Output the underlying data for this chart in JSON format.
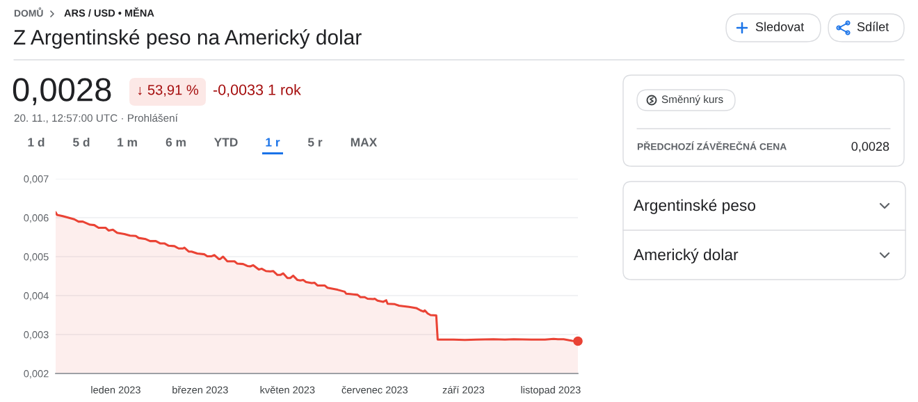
{
  "chart_data": {
    "type": "area",
    "title": "Z Argentinské peso na Americký dolar",
    "x": [
      "2022-11-20",
      "2022-11-21",
      "2022-11-25",
      "2022-12-03",
      "2022-12-06",
      "2022-12-09",
      "2022-12-14",
      "2022-12-17",
      "2022-12-20",
      "2022-12-25",
      "2022-12-27",
      "2022-12-30",
      "2023-01-02",
      "2023-01-07",
      "2023-01-11",
      "2023-01-15",
      "2023-01-17",
      "2023-01-22",
      "2023-01-25",
      "2023-01-29",
      "2023-02-01",
      "2023-02-04",
      "2023-02-07",
      "2023-02-11",
      "2023-02-14",
      "2023-02-17",
      "2023-02-18",
      "2023-02-21",
      "2023-02-23",
      "2023-02-27",
      "2023-03-04",
      "2023-03-06",
      "2023-03-09",
      "2023-03-11",
      "2023-03-14",
      "2023-03-15",
      "2023-03-17",
      "2023-03-20",
      "2023-03-25",
      "2023-03-27",
      "2023-03-31",
      "2023-04-03",
      "2023-04-05",
      "2023-04-07",
      "2023-04-11",
      "2023-04-13",
      "2023-04-16",
      "2023-04-19",
      "2023-04-21",
      "2023-04-24",
      "2023-04-26",
      "2023-04-28",
      "2023-05-01",
      "2023-05-03",
      "2023-05-05",
      "2023-05-08",
      "2023-05-10",
      "2023-05-12",
      "2023-05-14",
      "2023-05-18",
      "2023-05-20",
      "2023-05-22",
      "2023-05-27",
      "2023-05-29",
      "2023-06-05",
      "2023-06-10",
      "2023-06-11",
      "2023-06-14",
      "2023-06-19",
      "2023-06-21",
      "2023-06-24",
      "2023-06-26",
      "2023-06-30",
      "2023-07-01",
      "2023-07-03",
      "2023-07-07",
      "2023-07-09",
      "2023-07-10",
      "2023-07-15",
      "2023-07-18",
      "2023-07-23",
      "2023-07-25",
      "2023-07-30",
      "2023-08-02",
      "2023-08-04",
      "2023-08-05",
      "2023-08-07",
      "2023-08-09",
      "2023-08-13",
      "2023-08-14",
      "2023-08-25",
      "2023-09-02",
      "2023-09-10",
      "2023-09-22",
      "2023-09-30",
      "2023-10-06",
      "2023-10-20",
      "2023-10-28",
      "2023-11-03",
      "2023-11-06",
      "2023-11-10",
      "2023-11-16",
      "2023-11-20"
    ],
    "series": [
      {
        "color": "#ea4335",
        "values": [
          0.00614,
          0.00607,
          0.00604,
          0.00596,
          0.0059,
          0.0059,
          0.00582,
          0.00581,
          0.00574,
          0.00574,
          0.00567,
          0.00569,
          0.00561,
          0.00558,
          0.00554,
          0.00553,
          0.00548,
          0.00545,
          0.0054,
          0.0054,
          0.00534,
          0.00534,
          0.00528,
          0.00527,
          0.00521,
          0.00521,
          0.00523,
          0.00513,
          0.00513,
          0.00508,
          0.00506,
          0.00501,
          0.00501,
          0.00504,
          0.00494,
          0.00494,
          0.005,
          0.00488,
          0.00488,
          0.00482,
          0.00481,
          0.00476,
          0.00475,
          0.00478,
          0.00467,
          0.00469,
          0.00463,
          0.00462,
          0.00463,
          0.00453,
          0.00453,
          0.00457,
          0.00445,
          0.00445,
          0.00451,
          0.0044,
          0.00439,
          0.0044,
          0.00435,
          0.00432,
          0.00433,
          0.00426,
          0.00426,
          0.0042,
          0.00415,
          0.0041,
          0.00405,
          0.00404,
          0.00402,
          0.00396,
          0.00396,
          0.00392,
          0.00391,
          0.00392,
          0.00387,
          0.00384,
          0.00388,
          0.00379,
          0.00378,
          0.00374,
          0.00372,
          0.00371,
          0.00368,
          0.00362,
          0.00359,
          0.00362,
          0.00354,
          0.0035,
          0.00349,
          0.00287,
          0.00287,
          0.00286,
          0.00287,
          0.00288,
          0.00287,
          0.00288,
          0.00287,
          0.00287,
          0.00289,
          0.00288,
          0.00288,
          0.00284,
          0.00283
        ]
      },
      {
        "type": "scatter",
        "color": "#e94234",
        "marker": "circle",
        "x": [
          "2023-11-20"
        ],
        "values": [
          0.00283
        ]
      }
    ],
    "xlim": [
      "2022-11-20",
      "2023-11-20"
    ],
    "xticks": [
      {
        "value": "2023-01-01",
        "label": "leden 2023"
      },
      {
        "value": "2023-03-01",
        "label": "březen 2023"
      },
      {
        "value": "2023-05-01",
        "label": "květen 2023"
      },
      {
        "value": "2023-07-01",
        "label": "červenec 2023"
      },
      {
        "value": "2023-09-01",
        "label": "září 2023"
      },
      {
        "value": "2023-11-01",
        "label": "listopad 2023"
      }
    ],
    "ylim": [
      0.002,
      0.007
    ],
    "yticks": [
      {
        "value": 0.002,
        "label": "0,002"
      },
      {
        "value": 0.003,
        "label": "0,003"
      },
      {
        "value": 0.004,
        "label": "0,004"
      },
      {
        "value": 0.005,
        "label": "0,005"
      },
      {
        "value": 0.006,
        "label": "0,006"
      },
      {
        "value": 0.007,
        "label": "0,007"
      }
    ],
    "grid": "y",
    "annotations": [
      "DOMŮ",
      "ARS / USD • MĚNA",
      "0,0028",
      "↓ 53,91 %",
      "-0,0033 1 rok",
      "20. 11., 12:57:00 UTC · Prohlášení",
      "1 d",
      "5 d",
      "1 m",
      "6 m",
      "YTD",
      "1 r",
      "5 r",
      "MAX",
      "Sledovat",
      "Sdílet",
      "Směnný kurs",
      "PŘEDCHOZÍ ZÁVĚREČNÁ CENA",
      "0,0028",
      "Argentinské peso",
      "Americký dolar"
    ]
  }
}
